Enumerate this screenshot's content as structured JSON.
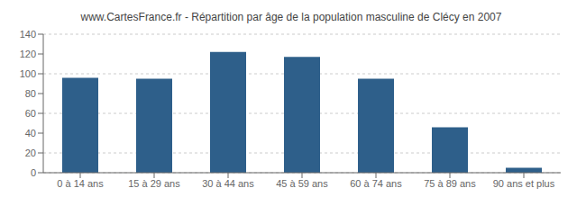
{
  "chart_data": {
    "type": "bar",
    "title": "www.CartesFrance.fr - Répartition par âge de la population masculine de Clécy en 2007",
    "categories": [
      "0 à 14 ans",
      "15 à 29 ans",
      "30 à 44 ans",
      "45 à 59 ans",
      "60 à 74 ans",
      "75 à 89 ans",
      "90 ans et plus"
    ],
    "values": [
      96,
      95,
      122,
      117,
      95,
      46,
      5
    ],
    "color": "#2e5f8a",
    "ylim": [
      0,
      140
    ],
    "yticks": [
      0,
      20,
      40,
      60,
      80,
      100,
      120,
      140
    ],
    "grid": true
  }
}
